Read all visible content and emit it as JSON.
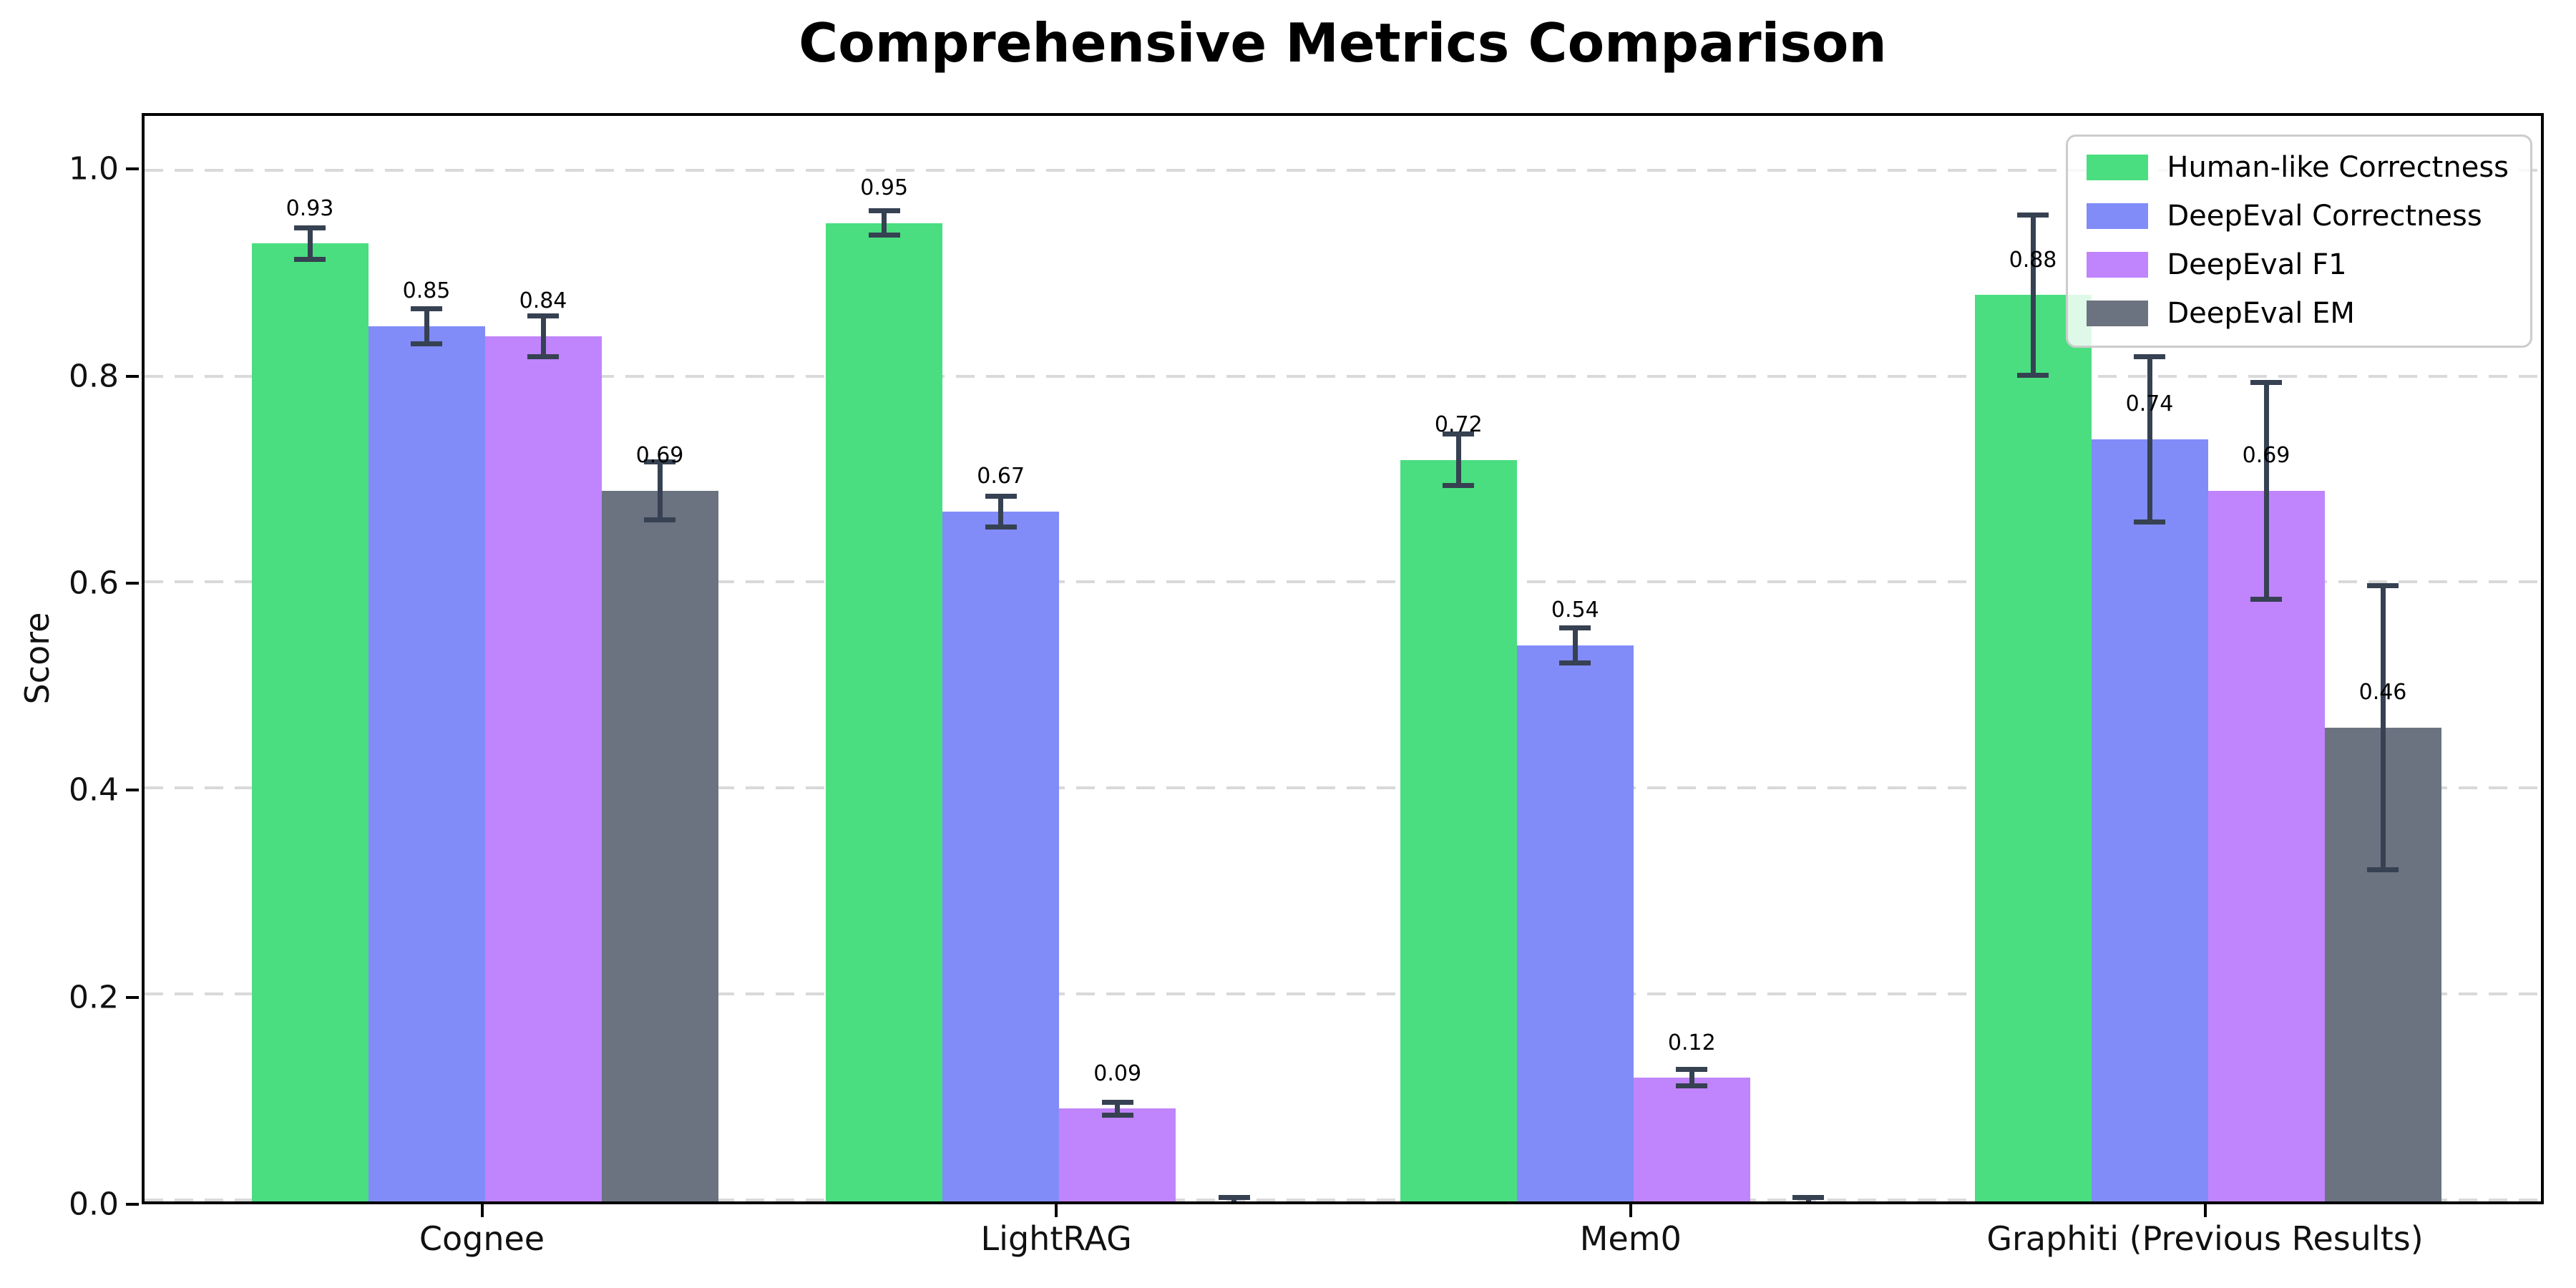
{
  "chart_data": {
    "type": "bar",
    "title": "Comprehensive Metrics Comparison",
    "ylabel": "Score",
    "xlabel": "",
    "categories": [
      "Cognee",
      "LightRAG",
      "Mem0",
      "Graphiti (Previous Results)"
    ],
    "series": [
      {
        "name": "Human-like Correctness",
        "color": "#4ade80",
        "values": [
          0.93,
          0.95,
          0.72,
          0.88
        ],
        "errors": [
          0.015,
          0.012,
          0.025,
          0.078
        ]
      },
      {
        "name": "DeepEval Correctness",
        "color": "#818cf8",
        "values": [
          0.85,
          0.67,
          0.54,
          0.74
        ],
        "errors": [
          0.017,
          0.015,
          0.017,
          0.08
        ]
      },
      {
        "name": "DeepEval F1",
        "color": "#c084fc",
        "values": [
          0.84,
          0.09,
          0.12,
          0.69
        ],
        "errors": [
          0.02,
          0.006,
          0.008,
          0.105
        ]
      },
      {
        "name": "DeepEval EM",
        "color": "#6b7280",
        "values": [
          0.69,
          0.0,
          0.0,
          0.46
        ],
        "errors": [
          0.028,
          0.004,
          0.004,
          0.138
        ]
      }
    ],
    "bar_value_labels": [
      [
        "0.93",
        "0.95",
        "0.72",
        "0.88"
      ],
      [
        "0.85",
        "0.67",
        "0.54",
        "0.74"
      ],
      [
        "0.84",
        "0.09",
        "0.12",
        "0.69"
      ],
      [
        "0.69",
        null,
        null,
        "0.46"
      ]
    ],
    "ylim": [
      0,
      1.054
    ],
    "yticks": [
      0.0,
      0.2,
      0.4,
      0.6,
      0.8,
      1.0
    ],
    "ytick_labels": [
      "0.0",
      "0.2",
      "0.4",
      "0.6",
      "0.8",
      "1.0"
    ],
    "grid": "horizontal-dashed",
    "legend_position": "top-right"
  },
  "colors": {
    "error_bar": "#364152",
    "gridline": "#d9d9d9",
    "axis": "#000000",
    "legend_border": "#cccccc",
    "background": "#ffffff"
  }
}
